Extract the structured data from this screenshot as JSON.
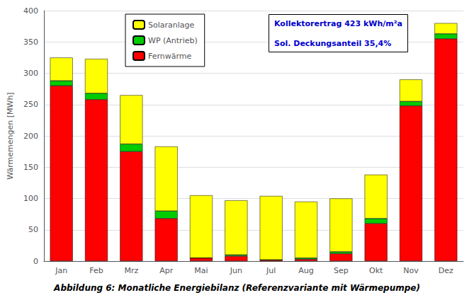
{
  "chart_data": {
    "type": "bar",
    "title": "Abbildung 6: Monatliche Energiebilanz (Referenzvariante mit Wärmepumpe)",
    "ylabel": "Wärmemengen [MWh]",
    "categories": [
      "Jan",
      "Feb",
      "Mrz",
      "Apr",
      "Mai",
      "Jun",
      "Jul",
      "Aug",
      "Sep",
      "Okt",
      "Nov",
      "Dez"
    ],
    "series": [
      {
        "name": "Fernwärme",
        "color": "#FF0000",
        "values": [
          280,
          258,
          175,
          68,
          5,
          8,
          2,
          3,
          12,
          60,
          248,
          355
        ]
      },
      {
        "name": "WP (Antrieb)",
        "color": "#00CC00",
        "values": [
          8,
          10,
          12,
          12,
          0,
          2,
          0,
          2,
          3,
          8,
          7,
          8
        ]
      },
      {
        "name": "Solaranlage",
        "color": "#FFFF00",
        "values": [
          37,
          55,
          78,
          103,
          100,
          87,
          102,
          90,
          85,
          70,
          35,
          17
        ]
      }
    ],
    "stacked": true,
    "ylim": [
      0,
      400
    ],
    "yticks": [
      0,
      50,
      100,
      150,
      200,
      250,
      300,
      350,
      400
    ],
    "grid": true,
    "legend": "upper left",
    "annotations": [
      "Kollektorertrag 423 kWh/m²a",
      "Sol. Deckungsanteil 35,4%"
    ]
  }
}
